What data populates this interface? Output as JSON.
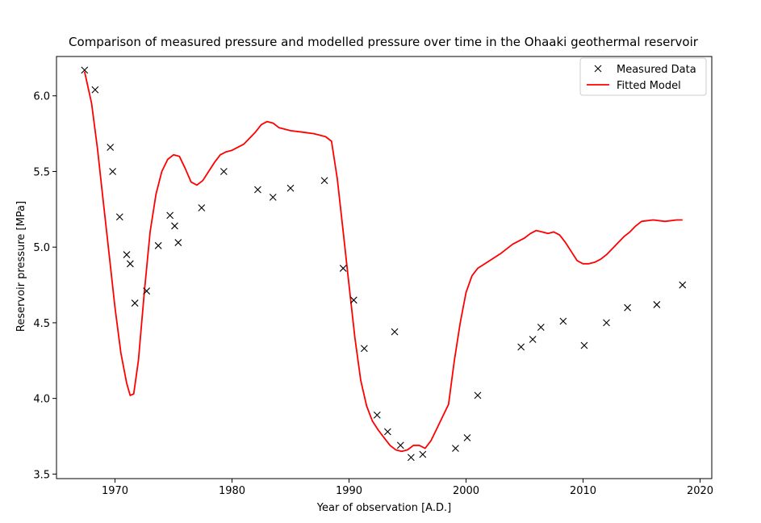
{
  "chart_data": {
    "type": "line",
    "title": "Comparison of measured pressure and modelled pressure over time in the Ohaaki geothermal reservoir",
    "xlabel": "Year of observation [A.D.]",
    "ylabel": "Reservoir pressure [MPa]",
    "xlim": [
      1965,
      2021
    ],
    "ylim": [
      3.47,
      6.26
    ],
    "xticks": [
      1970,
      1980,
      1990,
      2000,
      2010,
      2020
    ],
    "yticks": [
      3.5,
      4.0,
      4.5,
      5.0,
      5.5,
      6.0
    ],
    "ytick_labels": [
      "3.5",
      "4.0",
      "4.5",
      "5.0",
      "5.5",
      "6.0"
    ],
    "grid": false,
    "legend_position": "top-right",
    "series": [
      {
        "name": "Measured Data",
        "style": "x-marker",
        "color": "#000000",
        "x": [
          1967.4,
          1968.3,
          1969.6,
          1969.8,
          1970.4,
          1971.0,
          1971.3,
          1971.7,
          1972.7,
          1973.7,
          1974.7,
          1975.1,
          1975.4,
          1977.4,
          1979.3,
          1982.2,
          1983.5,
          1985.0,
          1987.9,
          1989.5,
          1990.4,
          1991.3,
          1992.4,
          1993.3,
          1993.9,
          1994.4,
          1995.3,
          1996.3,
          1999.1,
          2000.1,
          2001.0,
          2004.7,
          2005.7,
          2006.4,
          2008.3,
          2010.1,
          2012.0,
          2013.8,
          2016.3,
          2018.5
        ],
        "y": [
          6.17,
          6.04,
          5.66,
          5.5,
          5.2,
          4.95,
          4.89,
          4.63,
          4.71,
          5.01,
          5.21,
          5.14,
          5.03,
          5.26,
          5.5,
          5.38,
          5.33,
          5.39,
          5.44,
          4.86,
          4.65,
          4.33,
          3.89,
          3.78,
          4.44,
          3.69,
          3.61,
          3.63,
          3.67,
          3.74,
          4.02,
          4.34,
          4.39,
          4.47,
          4.51,
          4.35,
          4.5,
          4.6,
          4.62,
          4.75
        ]
      },
      {
        "name": "Fitted Model",
        "style": "line",
        "color": "#ff0000",
        "x": [
          1967.4,
          1968.0,
          1968.5,
          1969.0,
          1969.5,
          1970.0,
          1970.5,
          1971.0,
          1971.3,
          1971.6,
          1972.0,
          1972.5,
          1973.0,
          1973.5,
          1974.0,
          1974.5,
          1975.0,
          1975.5,
          1976.0,
          1976.5,
          1977.0,
          1977.5,
          1978.0,
          1978.5,
          1979.0,
          1979.5,
          1980.0,
          1981.0,
          1982.0,
          1982.5,
          1983.0,
          1983.5,
          1984.0,
          1985.0,
          1986.0,
          1987.0,
          1987.5,
          1988.0,
          1988.5,
          1989.0,
          1989.5,
          1990.0,
          1990.5,
          1991.0,
          1991.5,
          1992.0,
          1992.5,
          1993.0,
          1993.5,
          1994.0,
          1994.5,
          1995.0,
          1995.5,
          1996.0,
          1996.5,
          1997.0,
          1997.5,
          1998.0,
          1998.5,
          1999.0,
          1999.5,
          2000.0,
          2000.5,
          2001.0,
          2002.0,
          2003.0,
          2004.0,
          2005.0,
          2005.5,
          2006.0,
          2006.5,
          2007.0,
          2007.5,
          2008.0,
          2008.5,
          2009.0,
          2009.5,
          2010.0,
          2010.5,
          2011.0,
          2011.5,
          2012.0,
          2012.5,
          2013.0,
          2013.5,
          2014.0,
          2014.5,
          2015.0,
          2016.0,
          2017.0,
          2018.0,
          2018.5
        ],
        "y": [
          6.16,
          5.95,
          5.65,
          5.3,
          4.95,
          4.6,
          4.3,
          4.1,
          4.02,
          4.03,
          4.25,
          4.7,
          5.1,
          5.35,
          5.5,
          5.58,
          5.61,
          5.6,
          5.52,
          5.43,
          5.41,
          5.44,
          5.5,
          5.56,
          5.61,
          5.63,
          5.64,
          5.68,
          5.76,
          5.81,
          5.83,
          5.82,
          5.79,
          5.77,
          5.76,
          5.75,
          5.74,
          5.73,
          5.7,
          5.45,
          5.1,
          4.75,
          4.4,
          4.12,
          3.95,
          3.85,
          3.79,
          3.74,
          3.69,
          3.66,
          3.65,
          3.66,
          3.69,
          3.69,
          3.67,
          3.72,
          3.8,
          3.88,
          3.96,
          4.25,
          4.5,
          4.7,
          4.81,
          4.86,
          4.91,
          4.96,
          5.02,
          5.06,
          5.09,
          5.11,
          5.1,
          5.09,
          5.1,
          5.08,
          5.03,
          4.97,
          4.91,
          4.89,
          4.89,
          4.9,
          4.92,
          4.95,
          4.99,
          5.03,
          5.07,
          5.1,
          5.14,
          5.17,
          5.18,
          5.17,
          5.18,
          5.18
        ]
      }
    ]
  }
}
